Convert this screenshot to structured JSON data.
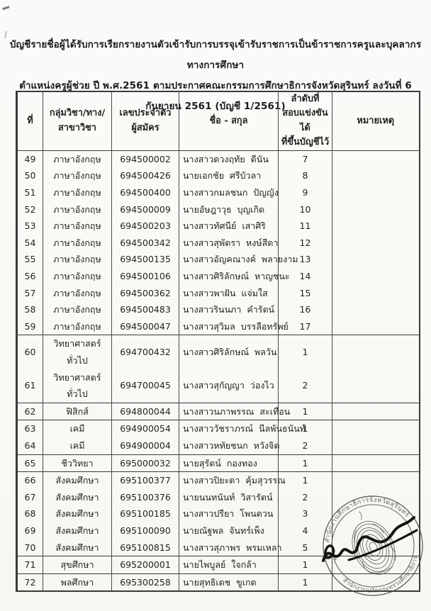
{
  "document": {
    "title_line1": "บัญชีรายชื่อผู้ได้รับการเรียกรายงานตัวเข้ารับการบรรจุเข้ารับราชการเป็นข้าราชการครูและบุคลากรทางการศึกษา",
    "title_line2": "ตำแหน่งครูผู้ช่วย ปี พ.ศ.2561 ตามประกาศคณะกรรมการศึกษาธิการจังหวัดสุรินทร์ ลงวันที่ 6 กันยายน 2561 (บัญชี 1/2561)"
  },
  "table": {
    "headers": {
      "no": "ที่",
      "subject": "กลุ่มวิชา/ทาง/สาขาวิชา",
      "applicant_id": "เลขประจำตัว\nผู้สมัคร",
      "name": "ชื่อ - สกุล",
      "rank": "ลำดับที่\nสอบแข่งขันได้\nที่ขึ้นบัญชีไว้",
      "remark": "หมายเหตุ"
    },
    "rows": [
      {
        "no": "49",
        "subject": "ภาษาอังกฤษ",
        "id": "694500002",
        "name": "นางสาวดวงฤทัย  ดีนัน",
        "rank": "7",
        "remark": "",
        "sep": false
      },
      {
        "no": "50",
        "subject": "ภาษาอังกฤษ",
        "id": "694500426",
        "name": "นายเอกชัย  ศรีบัวลา",
        "rank": "8",
        "remark": "",
        "sep": false
      },
      {
        "no": "51",
        "subject": "ภาษาอังกฤษ",
        "id": "694500400",
        "name": "นางสาวกมลชนก  ปัญญัง",
        "rank": "9",
        "remark": "",
        "sep": false
      },
      {
        "no": "52",
        "subject": "ภาษาอังกฤษ",
        "id": "694500009",
        "name": "นายอัษฎาวุธ  บุญเกิด",
        "rank": "10",
        "remark": "",
        "sep": false
      },
      {
        "no": "53",
        "subject": "ภาษาอังกฤษ",
        "id": "694500203",
        "name": "นางสาวทัศนีย์  เสาศิริ",
        "rank": "11",
        "remark": "",
        "sep": false
      },
      {
        "no": "54",
        "subject": "ภาษาอังกฤษ",
        "id": "694500342",
        "name": "นางสาวสุพัตรา  หงษ์สีดา",
        "rank": "12",
        "remark": "",
        "sep": false
      },
      {
        "no": "55",
        "subject": "ภาษาอังกฤษ",
        "id": "694500135",
        "name": "นางสาวอัญคณางค์  พลายงาม",
        "rank": "13",
        "remark": "",
        "sep": false
      },
      {
        "no": "56",
        "subject": "ภาษาอังกฤษ",
        "id": "694500106",
        "name": "นางสาวศิริลักษณ์  หาญชนะ",
        "rank": "14",
        "remark": "",
        "sep": false
      },
      {
        "no": "57",
        "subject": "ภาษาอังกฤษ",
        "id": "694500362",
        "name": "นางสาวพาฝัน  แจ่มใส",
        "rank": "15",
        "remark": "",
        "sep": false
      },
      {
        "no": "58",
        "subject": "ภาษาอังกฤษ",
        "id": "694500483",
        "name": "นางสาวรินนภา  คำรัตน์",
        "rank": "16",
        "remark": "",
        "sep": false
      },
      {
        "no": "59",
        "subject": "ภาษาอังกฤษ",
        "id": "694500047",
        "name": "นางสาวสุวิมล  บรรลือทรัพย์",
        "rank": "17",
        "remark": "",
        "sep": true
      },
      {
        "no": "60",
        "subject": "วิทยาศาสตร์ทั่วไป",
        "id": "694700432",
        "name": "นางสาวศิริลักษณ์  พลวัน",
        "rank": "1",
        "remark": "",
        "sep": false
      },
      {
        "no": "61",
        "subject": "วิทยาศาสตร์ทั่วไป",
        "id": "694700045",
        "name": "นางสาวสุกัญญา  ว่องไว",
        "rank": "2",
        "remark": "",
        "sep": true
      },
      {
        "no": "62",
        "subject": "ฟิสิกส์",
        "id": "694800044",
        "name": "นางสาวนภาพรรณ  สะเทือน",
        "rank": "1",
        "remark": "",
        "sep": true
      },
      {
        "no": "63",
        "subject": "เคมี",
        "id": "694900054",
        "name": "นางสาววัชราภรณ์  นีลพันธนันท์",
        "rank": "1",
        "remark": "",
        "sep": false
      },
      {
        "no": "64",
        "subject": "เคมี",
        "id": "694900004",
        "name": "นางสาวหทัยชนก  หวังจิต",
        "rank": "2",
        "remark": "",
        "sep": true
      },
      {
        "no": "65",
        "subject": "ชีววิทยา",
        "id": "695000032",
        "name": "นายสุรัตน์  กองทอง",
        "rank": "1",
        "remark": "",
        "sep": true
      },
      {
        "no": "66",
        "subject": "สังคมศึกษา",
        "id": "695100377",
        "name": "นางสาวปิยะดา  คุ้มสุวรรณ",
        "rank": "1",
        "remark": "",
        "sep": false
      },
      {
        "no": "67",
        "subject": "สังคมศึกษา",
        "id": "695100376",
        "name": "นายนนทนันท์  วิสารัตน์",
        "rank": "2",
        "remark": "",
        "sep": false
      },
      {
        "no": "68",
        "subject": "สังคมศึกษา",
        "id": "695100185",
        "name": "นางสาวปรียา  โพนดวน",
        "rank": "3",
        "remark": "",
        "sep": false
      },
      {
        "no": "69",
        "subject": "สังคมศึกษา",
        "id": "695100090",
        "name": "นายณัฐพล  จันทร์เพ็ง",
        "rank": "4",
        "remark": "",
        "sep": false
      },
      {
        "no": "70",
        "subject": "สังคมศึกษา",
        "id": "695100815",
        "name": "นางสาวสุภาพร  พรมเหลา",
        "rank": "5",
        "remark": "",
        "sep": true
      },
      {
        "no": "71",
        "subject": "สุขศึกษา",
        "id": "695200001",
        "name": "นายไพบูลย์  ใจกล้า",
        "rank": "1",
        "remark": "",
        "sep": true
      },
      {
        "no": "72",
        "subject": "พลศึกษา",
        "id": "695300258",
        "name": "นายสุทธิเดช  ขูเกด",
        "rank": "1",
        "remark": "",
        "sep": true
      }
    ]
  },
  "stamp": {
    "arc_top": "สำนักงานศึกษาธิการจังหวัดสุรินทร์",
    "arc_bottom": "สำนักงานปลัดกระทรวงศึกษาธิการ",
    "ink_color": "#4c4a47",
    "signature_color": "#141311"
  },
  "colors": {
    "paper": "#fbfaf8",
    "text": "#24231f",
    "border": "#3c3a38"
  }
}
